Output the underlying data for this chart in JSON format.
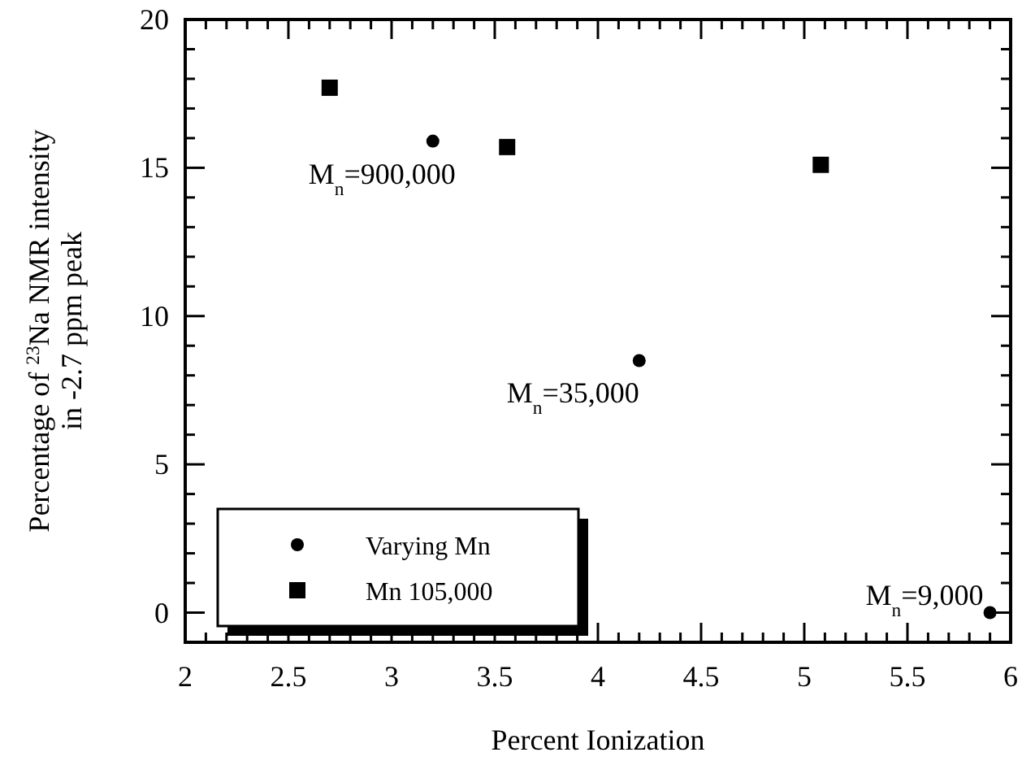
{
  "chart_data": {
    "type": "scatter",
    "xlabel": "Percent Ionization",
    "ylabel": "Percentage of $^{23}$Na NMR intensity\nin -2.7 ppm peak",
    "xlim": [
      2,
      6
    ],
    "ylim": [
      -1,
      20
    ],
    "xticks": [
      2,
      2.5,
      3,
      3.5,
      4,
      4.5,
      5,
      5.5,
      6,
      {
        "value": 2.1,
        "label": null
      },
      {
        "value": 2.2,
        "label": null
      },
      {
        "value": 2.3,
        "label": null
      },
      {
        "value": 2.4,
        "label": null
      },
      {
        "value": 2.6,
        "label": null
      },
      {
        "value": 2.7,
        "label": null
      },
      {
        "value": 2.8,
        "label": null
      },
      {
        "value": 2.9,
        "label": null
      },
      {
        "value": 3.1,
        "label": null
      },
      {
        "value": 3.2,
        "label": null
      },
      {
        "value": 3.3,
        "label": null
      },
      {
        "value": 3.4,
        "label": null
      },
      {
        "value": 3.6,
        "label": null
      },
      {
        "value": 3.7,
        "label": null
      },
      {
        "value": 3.8,
        "label": null
      },
      {
        "value": 3.9,
        "label": null
      },
      {
        "value": 4.1,
        "label": null
      },
      {
        "value": 4.2,
        "label": null
      },
      {
        "value": 4.3,
        "label": null
      },
      {
        "value": 4.4,
        "label": null
      },
      {
        "value": 4.6,
        "label": null
      },
      {
        "value": 4.7,
        "label": null
      },
      {
        "value": 4.8,
        "label": null
      },
      {
        "value": 4.9,
        "label": null
      },
      {
        "value": 5.1,
        "label": null
      },
      {
        "value": 5.2,
        "label": null
      },
      {
        "value": 5.3,
        "label": null
      },
      {
        "value": 5.4,
        "label": null
      },
      {
        "value": 5.6,
        "label": null
      },
      {
        "value": 5.7,
        "label": null
      },
      {
        "value": 5.8,
        "label": null
      },
      {
        "value": 5.9,
        "label": null
      }
    ],
    "yticks": [
      0,
      5,
      10,
      15,
      20,
      {
        "value": 1,
        "label": null
      },
      {
        "value": 2,
        "label": null
      },
      {
        "value": 3,
        "label": null
      },
      {
        "value": 4,
        "label": null
      },
      {
        "value": 6,
        "label": null
      },
      {
        "value": 7,
        "label": null
      },
      {
        "value": 8,
        "label": null
      },
      {
        "value": 9,
        "label": null
      },
      {
        "value": 11,
        "label": null
      },
      {
        "value": 12,
        "label": null
      },
      {
        "value": 13,
        "label": null
      },
      {
        "value": 14,
        "label": null
      },
      {
        "value": 16,
        "label": null
      },
      {
        "value": 17,
        "label": null
      },
      {
        "value": 18,
        "label": null
      },
      {
        "value": 19,
        "label": null
      }
    ],
    "series": [
      {
        "name": "Varying Mn",
        "color": "#000000",
        "marker": "circle",
        "x": [
          3.2,
          4.2,
          5.9
        ],
        "values": [
          15.9,
          8.5,
          0
        ]
      },
      {
        "name": "Mn 105,000",
        "color": "#000000",
        "marker": "square",
        "x": [
          2.7,
          3.56,
          5.08
        ],
        "values": [
          17.7,
          15.7,
          15.1
        ]
      }
    ],
    "annotations": [
      {
        "text": "M$_{n}$=900,000",
        "x": 3.2,
        "y": 15.9
      },
      {
        "text": "M$_{n}$=35,000",
        "x": 4.2,
        "y": 8.5
      },
      {
        "text": "M$_{n}$=9,000",
        "x": 5.9,
        "y": 0
      }
    ],
    "legend": "bottom left",
    "grid": false
  }
}
